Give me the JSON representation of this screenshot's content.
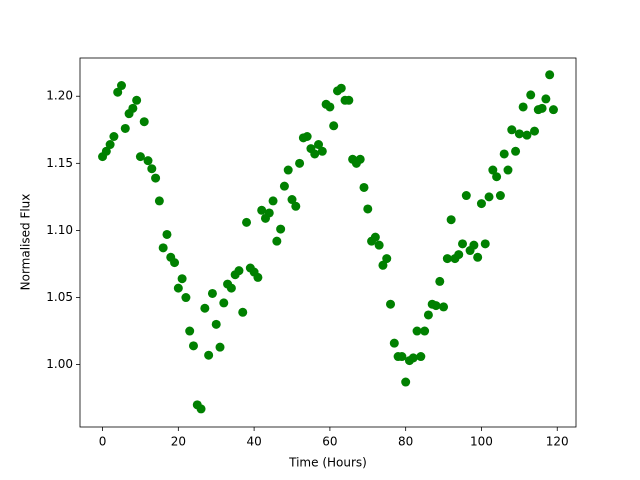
{
  "chart_data": {
    "type": "scatter",
    "x_label": "Time (Hours)",
    "y_label": "Normalised Flux",
    "color": "#008000",
    "x": [
      0,
      1,
      2,
      3,
      4,
      5,
      6,
      7,
      8,
      9,
      10,
      11,
      12,
      13,
      14,
      15,
      16,
      17,
      18,
      19,
      20,
      21,
      22,
      23,
      24,
      25,
      26,
      27,
      28,
      29,
      30,
      31,
      32,
      33,
      34,
      35,
      36,
      37,
      38,
      39,
      40,
      41,
      42,
      43,
      44,
      45,
      46,
      47,
      48,
      49,
      50,
      51,
      52,
      53,
      54,
      55,
      56,
      57,
      58,
      59,
      60,
      61,
      62,
      63,
      64,
      65,
      66,
      67,
      68,
      69,
      70,
      71,
      72,
      73,
      74,
      75,
      76,
      77,
      78,
      79,
      80,
      81,
      82,
      83,
      84,
      85,
      86,
      87,
      88,
      89,
      90,
      91,
      92,
      93,
      94,
      95,
      96,
      97,
      98,
      99,
      100,
      101,
      102,
      103,
      104,
      105,
      106,
      107,
      108,
      109,
      110,
      111,
      112,
      113,
      114,
      115,
      116,
      117,
      118,
      119
    ],
    "values": [
      1.155,
      1.159,
      1.164,
      1.17,
      1.203,
      1.208,
      1.176,
      1.187,
      1.191,
      1.197,
      1.155,
      1.181,
      1.152,
      1.146,
      1.139,
      1.122,
      1.087,
      1.097,
      1.08,
      1.076,
      1.057,
      1.064,
      1.05,
      1.025,
      1.014,
      0.97,
      0.967,
      1.042,
      1.007,
      1.053,
      1.03,
      1.013,
      1.046,
      1.06,
      1.057,
      1.067,
      1.07,
      1.039,
      1.106,
      1.072,
      1.069,
      1.065,
      1.115,
      1.109,
      1.113,
      1.122,
      1.092,
      1.101,
      1.133,
      1.145,
      1.123,
      1.118,
      1.15,
      1.169,
      1.17,
      1.161,
      1.157,
      1.164,
      1.159,
      1.194,
      1.192,
      1.178,
      1.204,
      1.206,
      1.197,
      1.197,
      1.153,
      1.15,
      1.153,
      1.132,
      1.116,
      1.092,
      1.095,
      1.089,
      1.074,
      1.079,
      1.045,
      1.016,
      1.006,
      1.006,
      0.987,
      1.003,
      1.005,
      1.025,
      1.006,
      1.025,
      1.037,
      1.045,
      1.044,
      1.062,
      1.043,
      1.079,
      1.108,
      1.079,
      1.082,
      1.09,
      1.126,
      1.085,
      1.089,
      1.08,
      1.12,
      1.09,
      1.125,
      1.145,
      1.14,
      1.126,
      1.157,
      1.145,
      1.175,
      1.159,
      1.172,
      1.192,
      1.171,
      1.201,
      1.174,
      1.19,
      1.191,
      1.198,
      1.216,
      1.19
    ],
    "xlim": [
      -5.95,
      124.95
    ],
    "xticks": [
      0,
      20,
      40,
      60,
      80,
      100,
      120
    ],
    "ylim": [
      0.9535,
      1.2285
    ],
    "yticks": [
      {
        "value": 1.0,
        "label": "1.00"
      },
      1.05,
      {
        "value": 1.1,
        "label": "1.10"
      },
      1.15,
      {
        "value": 1.2,
        "label": "1.20"
      }
    ]
  }
}
